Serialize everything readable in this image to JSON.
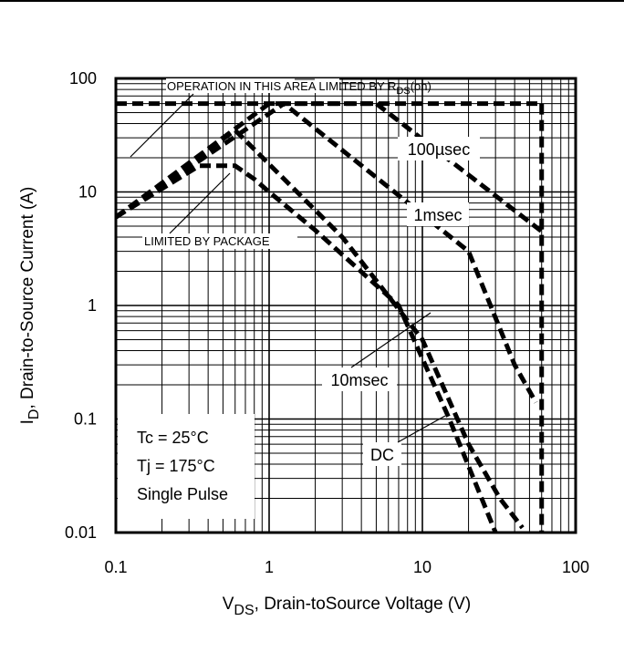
{
  "chart_data": {
    "type": "line",
    "title": "",
    "xlabel": {
      "main": "V",
      "sub": "DS",
      "rest": ", Drain-toSource Voltage (V)"
    },
    "ylabel": {
      "main": "I",
      "sub": "D",
      "rest": ", Drain-to-Source Current (A)"
    },
    "x_scale": "log",
    "y_scale": "log",
    "xlim": [
      0.1,
      100
    ],
    "ylim": [
      0.01,
      100
    ],
    "x_ticks": [
      "0.1",
      "1",
      "10",
      "100"
    ],
    "y_ticks": [
      "0.01",
      "0.1",
      "1",
      "10",
      "100"
    ],
    "grid": true,
    "annotations": {
      "rds_limit": {
        "text": "OPERATION IN THIS AREA LIMITED BY R",
        "sub": "DS",
        "tail": "(on)"
      },
      "package_limit": "LIMITED BY PACKAGE"
    },
    "conditions": [
      "Tc = 25°C",
      "Tj = 175°C",
      "Single Pulse"
    ],
    "series": [
      {
        "name": "100µsec",
        "points": [
          [
            0.1,
            6
          ],
          [
            1.25,
            60
          ],
          [
            5,
            60
          ],
          [
            60,
            4.5
          ]
        ]
      },
      {
        "name": "1msec",
        "points": [
          [
            0.1,
            6
          ],
          [
            1,
            60
          ],
          [
            1.25,
            60
          ],
          [
            20,
            3
          ],
          [
            40,
            0.3
          ],
          [
            55,
            0.14
          ]
        ]
      },
      {
        "name": "10msec",
        "points": [
          [
            0.1,
            6
          ],
          [
            0.6,
            35
          ],
          [
            3,
            4
          ],
          [
            10,
            0.5
          ],
          [
            20,
            0.06
          ],
          [
            32,
            0.02
          ],
          [
            45,
            0.011
          ]
        ]
      },
      {
        "name": "DC",
        "points": [
          [
            0.1,
            6
          ],
          [
            0.35,
            17
          ],
          [
            0.6,
            17
          ],
          [
            0.8,
            13
          ],
          [
            1,
            10
          ],
          [
            2,
            4.6
          ],
          [
            7,
            1
          ],
          [
            15,
            0.1
          ],
          [
            30,
            0.01
          ]
        ]
      }
    ],
    "limit_lines": {
      "rds_on_current": 60,
      "vds_max": 60
    }
  }
}
